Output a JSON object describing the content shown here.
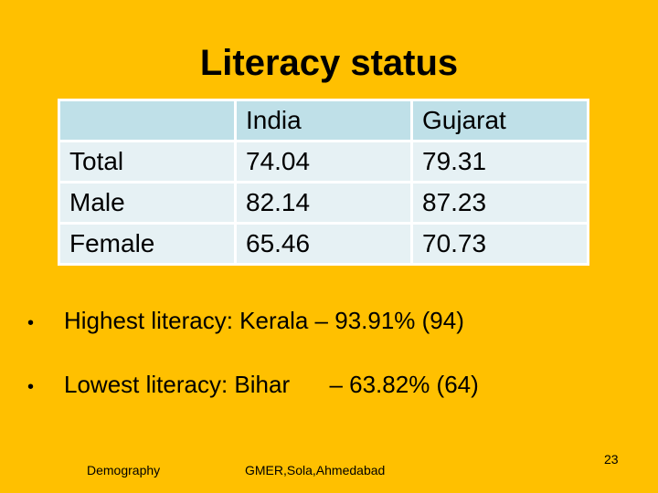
{
  "slide": {
    "title": "Literacy status",
    "table": {
      "headers": [
        "",
        "India",
        "Gujarat"
      ],
      "rows": [
        [
          "Total",
          "74.04",
          "79.31"
        ],
        [
          "Male",
          "82.14",
          "87.23"
        ],
        [
          "Female",
          "65.46",
          "70.73"
        ]
      ]
    },
    "bullets": [
      "Highest literacy: Kerala – 93.91% (94)",
      "Lowest literacy: Bihar      – 63.82% (64)"
    ],
    "footer": {
      "left": "Demography",
      "center": "GMER,Sola,Ahmedabad",
      "page_number": "23"
    }
  },
  "colors": {
    "background": "#FFC000",
    "table_header": "#BFE0E8",
    "table_body": "#E6F1F4"
  }
}
